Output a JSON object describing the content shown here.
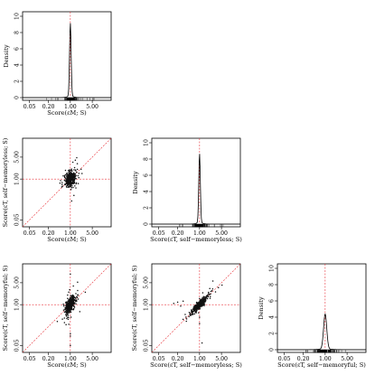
{
  "figure": {
    "layout": "3x3 lower-triangular scatterplot matrix with diagonal density plots",
    "tick_labels_x": [
      "0.05",
      "0.20",
      "1.00",
      "5.00"
    ],
    "tick_labels_y": [
      "0.05",
      "1.00",
      "5.00"
    ],
    "density_ticks": [
      "0",
      "2",
      "4",
      "6",
      "8",
      "10"
    ],
    "density_label": "Density",
    "colors": {
      "points": "#111111",
      "density": "#000000",
      "reference": "#e8333a",
      "frame": "#000000"
    }
  },
  "chart_data": [
    {
      "type": "area",
      "panel": "density-1",
      "xlabel": "Score(εM; S)",
      "ylabel": "Density",
      "xscale": "log",
      "xlim": [
        0.03,
        20
      ],
      "ylim": [
        0,
        10
      ],
      "vline": 1.0,
      "peak_x": 1.0,
      "peak_height": 9.0,
      "width": 0.025,
      "rug": true
    },
    {
      "type": "scatter",
      "panel": "scatter-2-1",
      "xlabel": "Score(εM; S)",
      "ylabel": "Score(εT, self−memoryless; S)",
      "xscale": "log",
      "yscale": "log",
      "xlim": [
        0.03,
        20
      ],
      "ylim": [
        0.03,
        20
      ],
      "diagonal": true,
      "vline": 1.0,
      "hline": 1.0,
      "cloud_center": [
        1.0,
        1.0
      ],
      "spread_log10": [
        0.08,
        0.1
      ],
      "correlation": 0.3,
      "n_points": 420,
      "outliers": [
        [
          1.1,
          0.2
        ],
        [
          1.3,
          0.3
        ],
        [
          1.6,
          4.8
        ],
        [
          0.7,
          1.9
        ]
      ]
    },
    {
      "type": "area",
      "panel": "density-2",
      "xlabel": "Score(εT, self−memoryless; S)",
      "ylabel": "Density",
      "xscale": "log",
      "xlim": [
        0.03,
        20
      ],
      "ylim": [
        0,
        10
      ],
      "vline": 1.0,
      "peak_x": 1.0,
      "peak_height": 8.5,
      "width": 0.025,
      "rug": true
    },
    {
      "type": "scatter",
      "panel": "scatter-3-1",
      "xlabel": "Score(εM; S)",
      "ylabel": "Score(εT, self−memoryful; S)",
      "xscale": "log",
      "yscale": "log",
      "xlim": [
        0.03,
        20
      ],
      "ylim": [
        0.03,
        20
      ],
      "diagonal": true,
      "vline": 1.0,
      "hline": 1.0,
      "cloud_center": [
        1.0,
        1.0
      ],
      "spread_log10": [
        0.07,
        0.13
      ],
      "correlation": 0.6,
      "n_points": 420,
      "outliers": [
        [
          1.0,
          9.5
        ],
        [
          1.0,
          0.05
        ],
        [
          1.0,
          0.1
        ],
        [
          0.95,
          3.0
        ],
        [
          1.05,
          0.4
        ],
        [
          3.0,
          2.5
        ],
        [
          2.0,
          0.6
        ],
        [
          1.0,
          0.12
        ]
      ]
    },
    {
      "type": "scatter",
      "panel": "scatter-3-2",
      "xlabel": "Score(εT, self−memoryless; S)",
      "ylabel": "Score(εT, self−memoryful; S)",
      "xscale": "log",
      "yscale": "log",
      "xlim": [
        0.03,
        20
      ],
      "ylim": [
        0.03,
        20
      ],
      "diagonal": true,
      "vline": 1.0,
      "hline": 1.0,
      "cloud_center": [
        1.0,
        1.0
      ],
      "spread_log10": [
        0.12,
        0.13
      ],
      "correlation": 0.9,
      "n_points": 420,
      "outliers": [
        [
          0.2,
          1.2
        ],
        [
          0.3,
          1.3
        ],
        [
          0.15,
          1.1
        ],
        [
          0.25,
          0.9
        ],
        [
          1.0,
          0.25
        ],
        [
          1.0,
          0.4
        ],
        [
          4.0,
          3.5
        ],
        [
          1.2,
          0.06
        ]
      ]
    },
    {
      "type": "area",
      "panel": "density-3",
      "xlabel": "Score(εT, self−memoryful; S)",
      "ylabel": "Density",
      "xscale": "log",
      "xlim": [
        0.03,
        20
      ],
      "ylim": [
        0,
        10
      ],
      "vline": 1.0,
      "peak_x": 1.0,
      "peak_height": 4.3,
      "width": 0.05,
      "rug": true
    }
  ]
}
